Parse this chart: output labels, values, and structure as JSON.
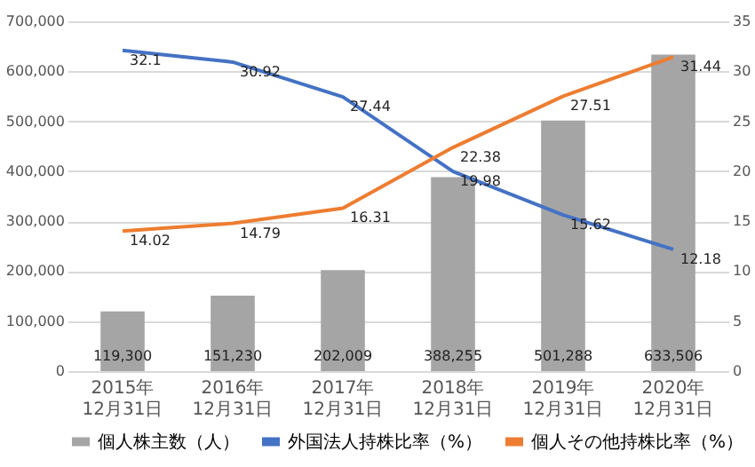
{
  "chart_data": {
    "type": "bar",
    "categories": [
      "2015年12月31日",
      "2016年12月31日",
      "2017年12月31日",
      "2018年12月31日",
      "2019年12月31日",
      "2020年12月31日"
    ],
    "series": [
      {
        "name": "個人株主数（人）",
        "type": "bar",
        "color": "#a5a5a5",
        "values": [
          119300,
          151230,
          202009,
          388255,
          501288,
          633506
        ],
        "value_labels": [
          "119,300",
          "151,230",
          "202,009",
          "388,255",
          "501,288",
          "633,506"
        ]
      },
      {
        "name": "外国法人持株比率（%）",
        "type": "line",
        "axis": "y2",
        "color": "#4472c4",
        "values": [
          32.1,
          30.92,
          27.44,
          19.98,
          15.62,
          12.18
        ]
      },
      {
        "name": "個人その他持株比率（%）",
        "type": "line",
        "axis": "y2",
        "color": "#ed7d31",
        "values": [
          14.02,
          14.79,
          16.31,
          22.38,
          27.51,
          31.44
        ]
      }
    ],
    "ylim": [
      0,
      700000
    ],
    "yticks": [
      0,
      {
        "value": 100000,
        "label": "100,000"
      },
      {
        "value": 200000,
        "label": "200,000"
      },
      {
        "value": 300000,
        "label": "300,000"
      },
      {
        "value": 400000,
        "label": "400,000"
      },
      {
        "value": 500000,
        "label": "500,000"
      },
      {
        "value": 600000,
        "label": "600,000"
      },
      {
        "value": 700000,
        "label": "700,000"
      }
    ],
    "y2lim": [
      0,
      35
    ],
    "y2ticks": [
      0,
      5,
      10,
      15,
      20,
      25,
      30,
      35
    ],
    "grid": "y",
    "legend": "bottom",
    "data_labels": true
  }
}
